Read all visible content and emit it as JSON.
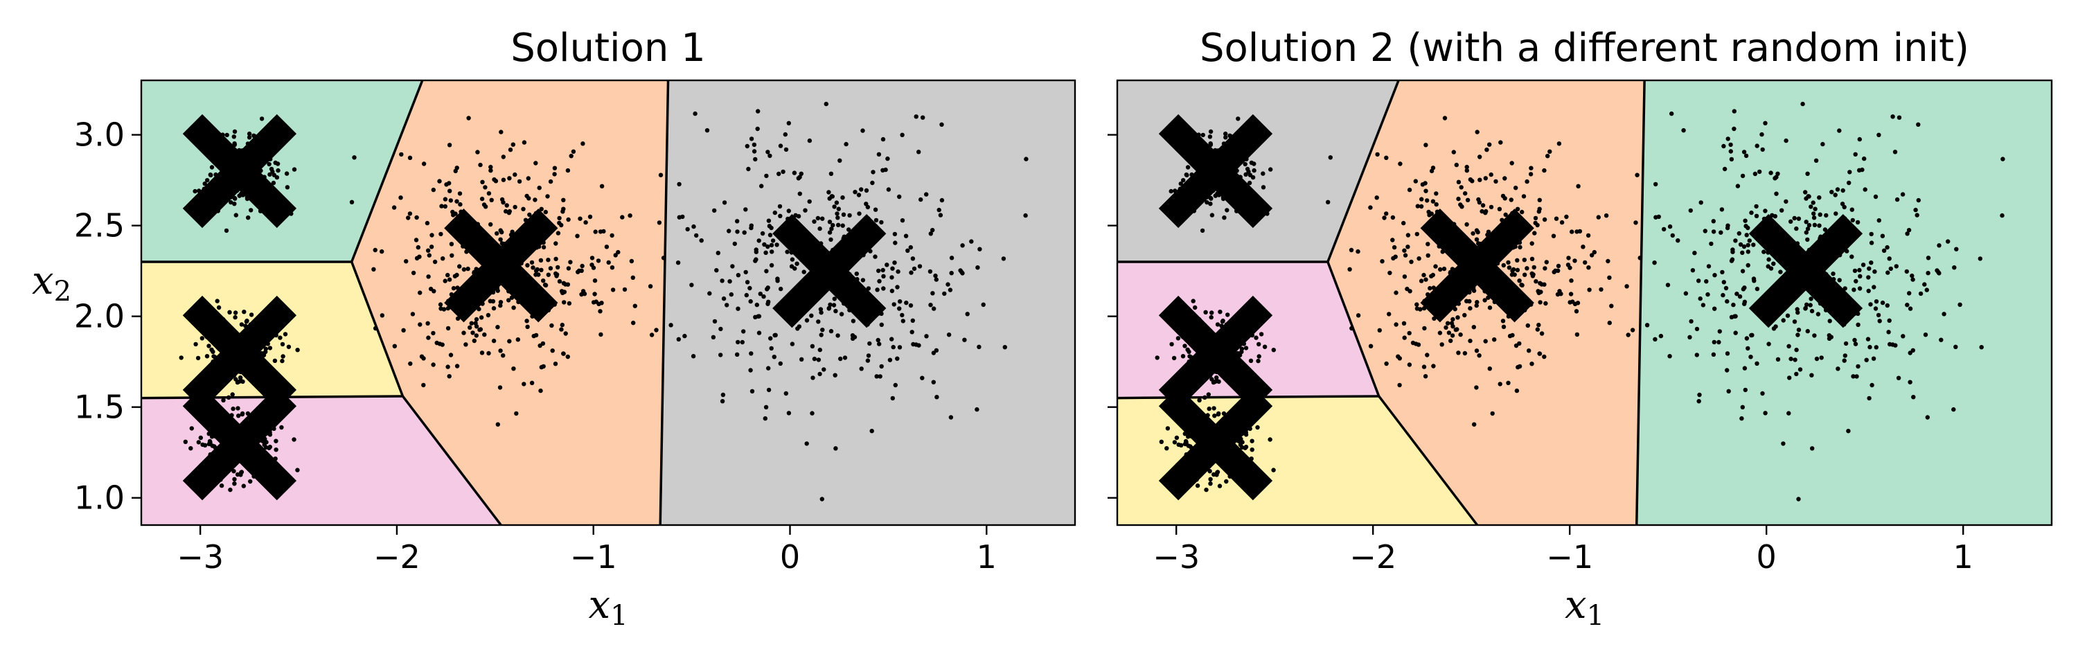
{
  "chart_data": [
    {
      "type": "scatter",
      "title": "Solution 1",
      "xlabel": "x1",
      "ylabel": "x2",
      "xlim": [
        -3.3,
        1.45
      ],
      "ylim": [
        0.85,
        3.3
      ],
      "xticks": [
        -3,
        -2,
        -1,
        0,
        1
      ],
      "xtick_labels": [
        "−3",
        "−2",
        "−1",
        "0",
        "1"
      ],
      "yticks": [
        1.0,
        1.5,
        2.0,
        2.5,
        3.0
      ],
      "ytick_labels": [
        "1.0",
        "1.5",
        "2.0",
        "2.5",
        "3.0"
      ],
      "show_yticklabels": true,
      "grid": false,
      "centroids": [
        {
          "x": -2.8,
          "y": 2.8
        },
        {
          "x": -1.47,
          "y": 2.28
        },
        {
          "x": 0.2,
          "y": 2.25
        },
        {
          "x": -2.8,
          "y": 1.8
        },
        {
          "x": -2.8,
          "y": 1.3
        }
      ],
      "regions": [
        {
          "color": "#b3e2cd",
          "polygon": [
            [
              -3.3,
              3.3
            ],
            [
              -1.87,
              3.3
            ],
            [
              -2.23,
              2.3
            ],
            [
              -3.3,
              2.3
            ]
          ]
        },
        {
          "color": "#fdcdac",
          "polygon": [
            [
              -1.87,
              3.3
            ],
            [
              -0.62,
              3.3
            ],
            [
              -0.66,
              0.85
            ],
            [
              -1.47,
              0.85
            ],
            [
              -1.97,
              1.56
            ],
            [
              -2.23,
              2.3
            ]
          ]
        },
        {
          "color": "#cccccc",
          "polygon": [
            [
              -0.62,
              3.3
            ],
            [
              1.45,
              3.3
            ],
            [
              1.45,
              0.85
            ],
            [
              -0.66,
              0.85
            ]
          ]
        },
        {
          "color": "#fff2ae",
          "polygon": [
            [
              -3.3,
              2.3
            ],
            [
              -2.23,
              2.3
            ],
            [
              -1.97,
              1.56
            ],
            [
              -3.3,
              1.55
            ]
          ]
        },
        {
          "color": "#f4cae4",
          "polygon": [
            [
              -3.3,
              1.55
            ],
            [
              -1.97,
              1.56
            ],
            [
              -1.47,
              0.85
            ],
            [
              -3.3,
              0.85
            ]
          ]
        }
      ],
      "boundaries": [
        [
          [
            -1.87,
            3.3
          ],
          [
            -2.23,
            2.3
          ]
        ],
        [
          [
            -3.3,
            2.3
          ],
          [
            -2.23,
            2.3
          ]
        ],
        [
          [
            -2.23,
            2.3
          ],
          [
            -1.97,
            1.56
          ]
        ],
        [
          [
            -1.97,
            1.56
          ],
          [
            -3.3,
            1.55
          ]
        ],
        [
          [
            -1.97,
            1.56
          ],
          [
            -1.47,
            0.85
          ]
        ],
        [
          [
            -0.62,
            3.3
          ],
          [
            -0.66,
            0.85
          ]
        ]
      ]
    },
    {
      "type": "scatter",
      "title": "Solution 2 (with a different random init)",
      "xlabel": "x1",
      "ylabel": "",
      "xlim": [
        -3.3,
        1.45
      ],
      "ylim": [
        0.85,
        3.3
      ],
      "xticks": [
        -3,
        -2,
        -1,
        0,
        1
      ],
      "xtick_labels": [
        "−3",
        "−2",
        "−1",
        "0",
        "1"
      ],
      "yticks": [
        1.0,
        1.5,
        2.0,
        2.5,
        3.0
      ],
      "ytick_labels": [],
      "show_yticklabels": false,
      "grid": false,
      "centroids": [
        {
          "x": -2.8,
          "y": 2.8
        },
        {
          "x": -1.47,
          "y": 2.28
        },
        {
          "x": 0.2,
          "y": 2.25
        },
        {
          "x": -2.8,
          "y": 1.8
        },
        {
          "x": -2.8,
          "y": 1.3
        }
      ],
      "regions": [
        {
          "color": "#cccccc",
          "polygon": [
            [
              -3.3,
              3.3
            ],
            [
              -1.87,
              3.3
            ],
            [
              -2.23,
              2.3
            ],
            [
              -3.3,
              2.3
            ]
          ]
        },
        {
          "color": "#fdcdac",
          "polygon": [
            [
              -1.87,
              3.3
            ],
            [
              -0.62,
              3.3
            ],
            [
              -0.66,
              0.85
            ],
            [
              -1.47,
              0.85
            ],
            [
              -1.97,
              1.56
            ],
            [
              -2.23,
              2.3
            ]
          ]
        },
        {
          "color": "#b3e2cd",
          "polygon": [
            [
              -0.62,
              3.3
            ],
            [
              1.45,
              3.3
            ],
            [
              1.45,
              0.85
            ],
            [
              -0.66,
              0.85
            ]
          ]
        },
        {
          "color": "#f4cae4",
          "polygon": [
            [
              -3.3,
              2.3
            ],
            [
              -2.23,
              2.3
            ],
            [
              -1.97,
              1.56
            ],
            [
              -3.3,
              1.55
            ]
          ]
        },
        {
          "color": "#fff2ae",
          "polygon": [
            [
              -3.3,
              1.55
            ],
            [
              -1.97,
              1.56
            ],
            [
              -1.47,
              0.85
            ],
            [
              -3.3,
              0.85
            ]
          ]
        }
      ],
      "boundaries": [
        [
          [
            -1.87,
            3.3
          ],
          [
            -2.23,
            2.3
          ]
        ],
        [
          [
            -3.3,
            2.3
          ],
          [
            -2.23,
            2.3
          ]
        ],
        [
          [
            -2.23,
            2.3
          ],
          [
            -1.97,
            1.56
          ]
        ],
        [
          [
            -1.97,
            1.56
          ],
          [
            -3.3,
            1.55
          ]
        ],
        [
          [
            -1.97,
            1.56
          ],
          [
            -1.47,
            0.85
          ]
        ],
        [
          [
            -0.62,
            3.3
          ],
          [
            -0.66,
            0.85
          ]
        ]
      ]
    }
  ],
  "clusters": [
    {
      "x": -2.8,
      "y": 2.8,
      "sx": 0.1,
      "sy": 0.1,
      "n": 200
    },
    {
      "x": -1.47,
      "y": 2.28,
      "sx": 0.3,
      "sy": 0.3,
      "n": 400
    },
    {
      "x": 0.2,
      "y": 2.25,
      "sx": 0.38,
      "sy": 0.4,
      "n": 400
    },
    {
      "x": -2.8,
      "y": 1.8,
      "sx": 0.1,
      "sy": 0.1,
      "n": 200
    },
    {
      "x": -2.8,
      "y": 1.3,
      "sx": 0.1,
      "sy": 0.1,
      "n": 200
    }
  ],
  "colors": {
    "boundary": "#000000",
    "point": "#000000",
    "centroid": "#000000"
  }
}
